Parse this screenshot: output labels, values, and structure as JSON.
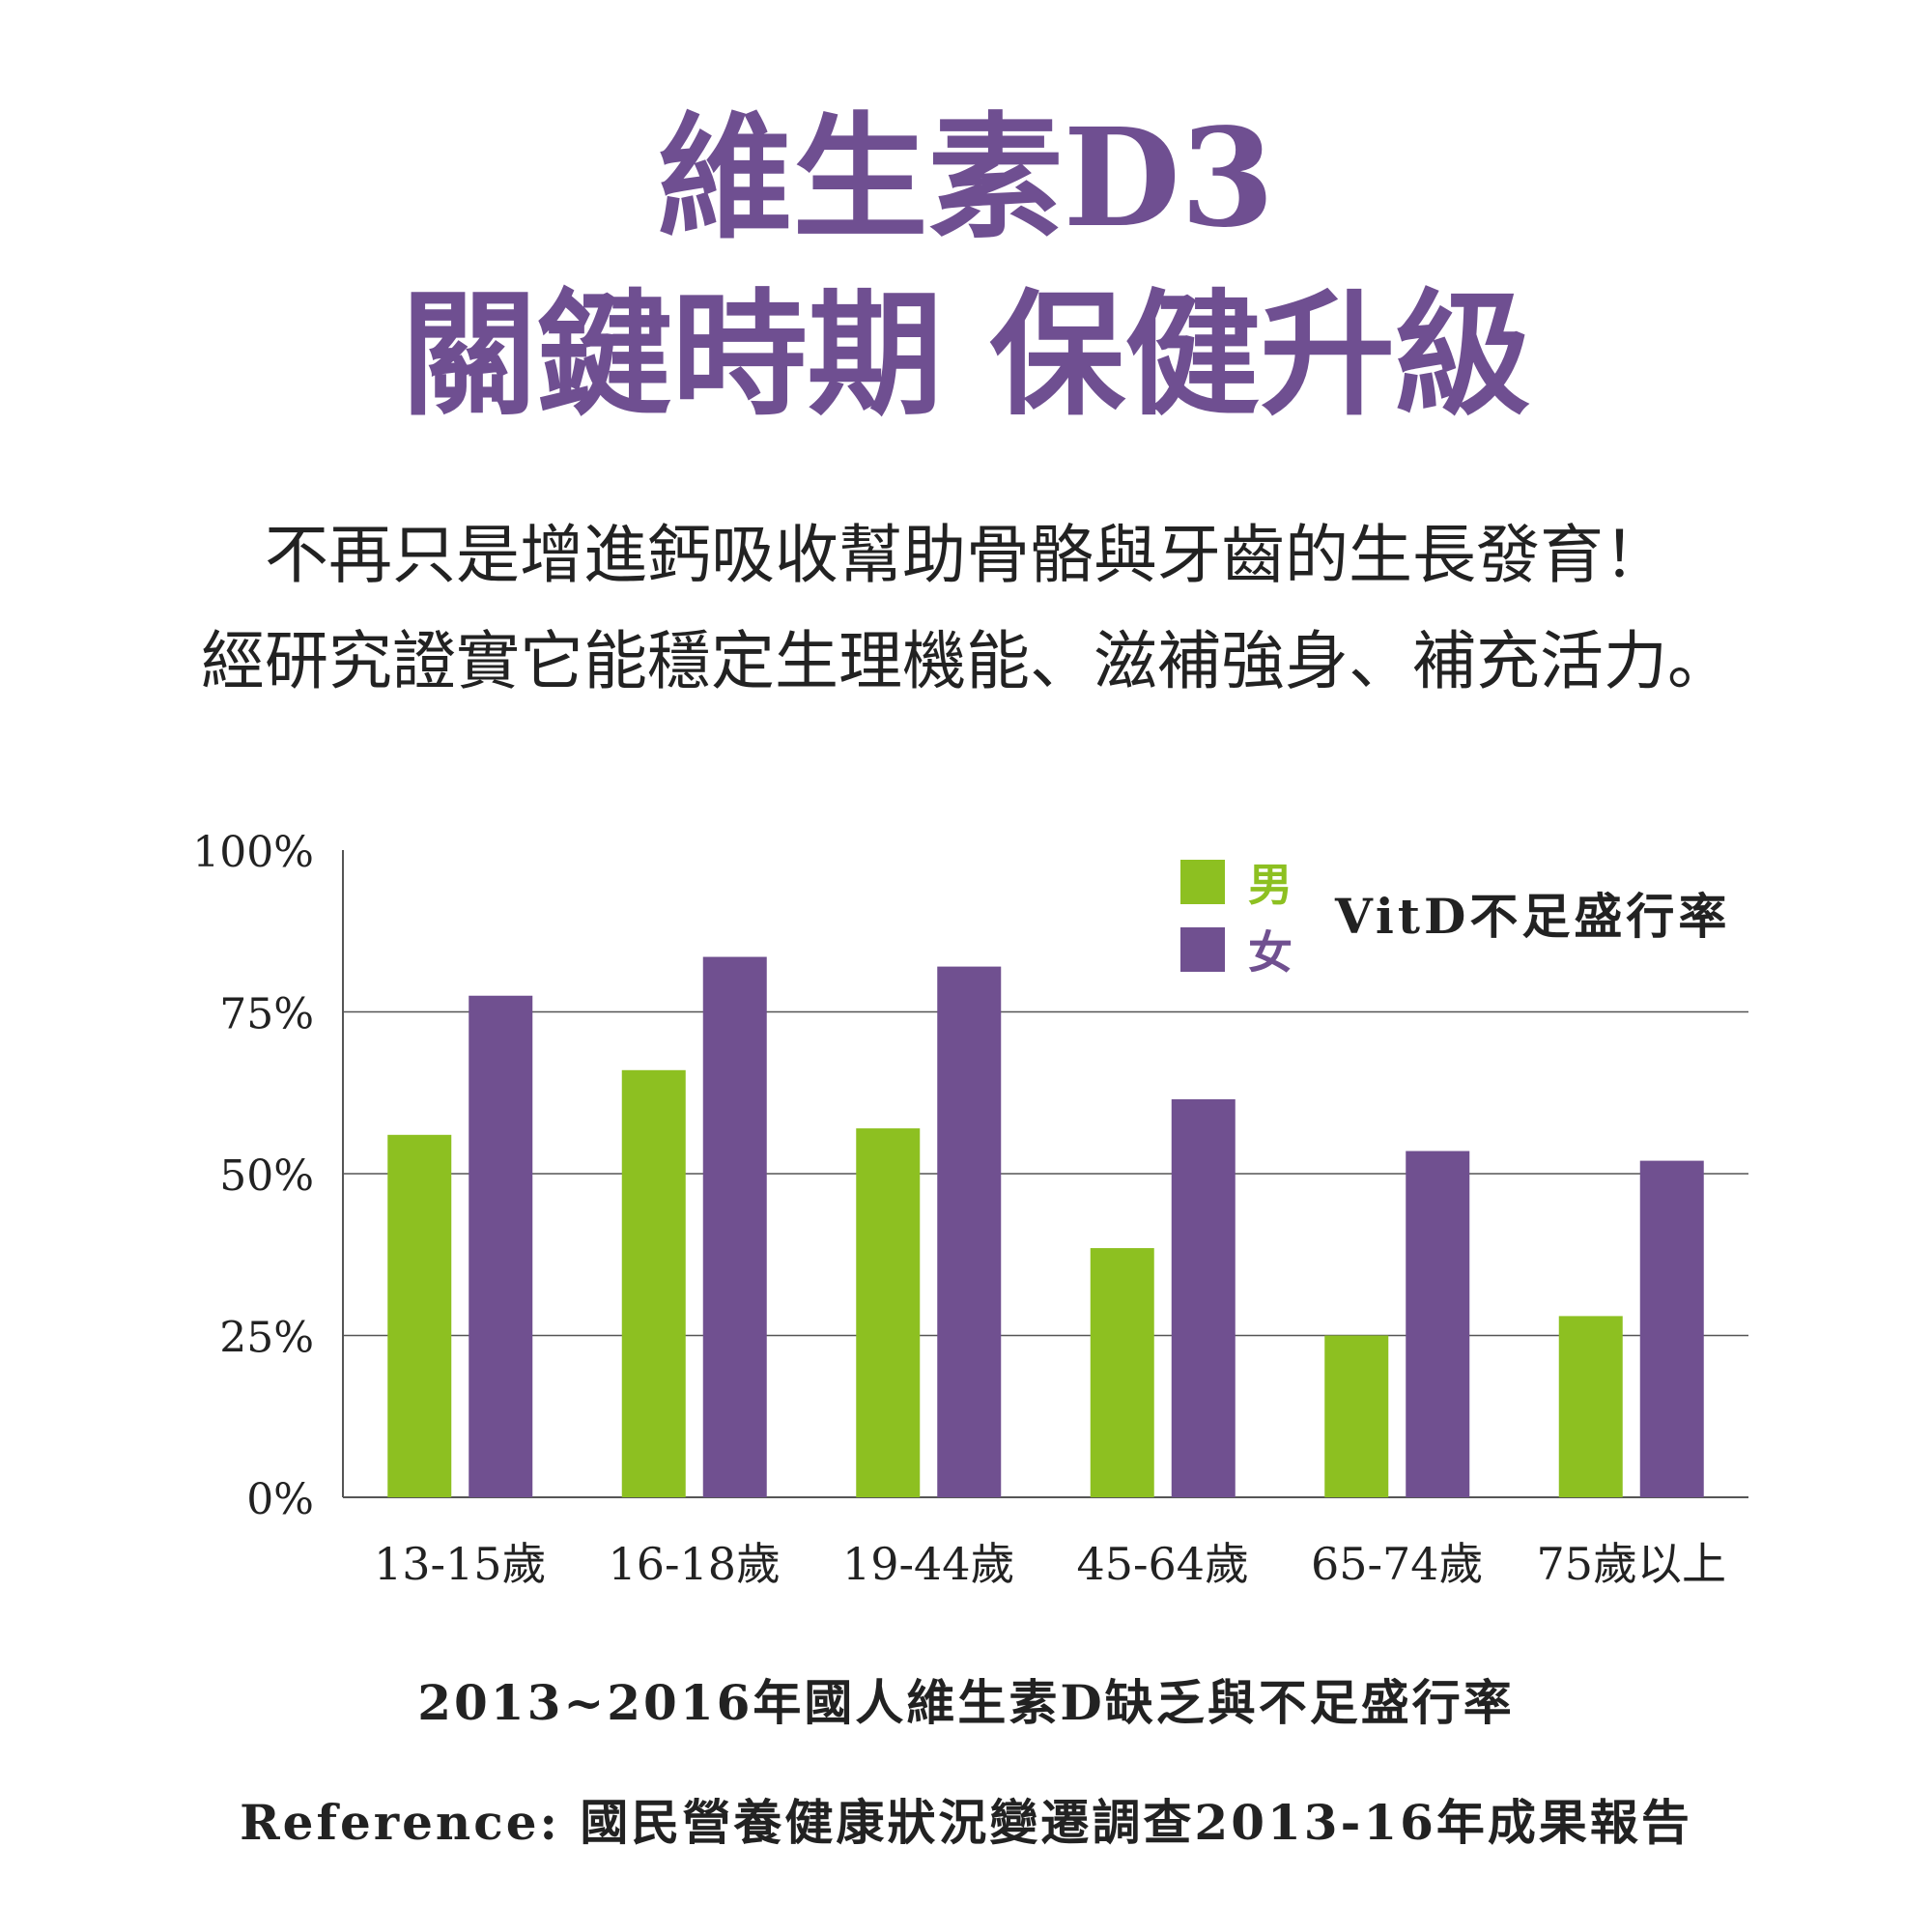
{
  "header": {
    "title_line1": "維生素D3",
    "title_line2": "關鍵時期 保健升級",
    "subtitle_line1": "不再只是增進鈣吸收幫助骨骼與牙齒的生長發育！",
    "subtitle_line2": "經研究證實它能穩定生理機能、滋補強身、補充活力。"
  },
  "chart_data": {
    "type": "bar",
    "title": "VitD不足盛行率",
    "categories": [
      "13-15歲",
      "16-18歲",
      "19-44歲",
      "45-64歲",
      "65-74歲",
      "75歲以上"
    ],
    "series": [
      {
        "name": "男",
        "color": "#8dc021",
        "values": [
          56,
          66,
          57,
          38.5,
          25,
          28
        ]
      },
      {
        "name": "女",
        "color": "#705090",
        "values": [
          77.5,
          83.5,
          82,
          61.5,
          53.5,
          52
        ]
      }
    ],
    "ylim": [
      0,
      100
    ],
    "yticks": [
      "0%",
      "25%",
      "50%",
      "75%",
      "100%"
    ],
    "ytick_values": [
      0,
      25,
      50,
      75,
      100
    ],
    "grid": true,
    "legend_position": "top-right",
    "xlabel": "",
    "ylabel": ""
  },
  "footer": {
    "caption": "2013~2016年國人維生素D缺乏與不足盛行率",
    "reference": "Reference: 國民營養健康狀況變遷調查2013-16年成果報告"
  }
}
